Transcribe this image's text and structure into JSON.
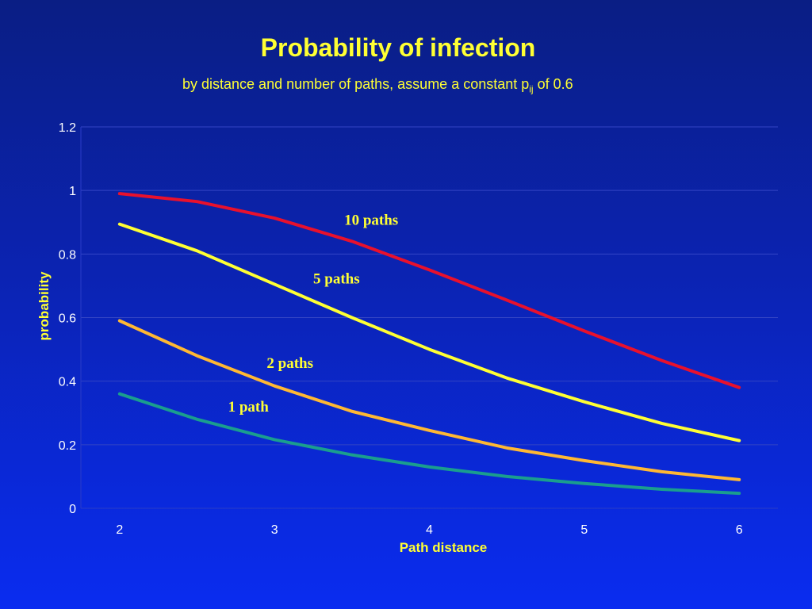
{
  "slide": {
    "title": "Probability of infection",
    "subtitle_main": "by distance and number of paths, assume a constant p",
    "subtitle_sub": "ij",
    "subtitle_tail": " of 0.6"
  },
  "chart_data": {
    "type": "line",
    "x": [
      2,
      2.5,
      3,
      3.5,
      4,
      4.5,
      5,
      5.5,
      6
    ],
    "series": [
      {
        "name": "10 paths",
        "color": "#e8112d",
        "values": [
          0.99,
          0.965,
          0.913,
          0.84,
          0.75,
          0.655,
          0.558,
          0.465,
          0.38
        ]
      },
      {
        "name": "5 paths",
        "color": "#ffff33",
        "values": [
          0.894,
          0.81,
          0.705,
          0.6,
          0.5,
          0.41,
          0.335,
          0.267,
          0.213
        ]
      },
      {
        "name": "2 paths",
        "color": "#ffb833",
        "values": [
          0.59,
          0.48,
          0.385,
          0.305,
          0.245,
          0.19,
          0.15,
          0.115,
          0.09
        ]
      },
      {
        "name": "1 path",
        "color": "#1a9e8e",
        "values": [
          0.36,
          0.28,
          0.216,
          0.168,
          0.13,
          0.1,
          0.078,
          0.06,
          0.047
        ]
      }
    ],
    "xticks": [
      "2",
      "3",
      "4",
      "5",
      "6"
    ],
    "yticks": [
      "0",
      "0.2",
      "0.4",
      "0.6",
      "0.8",
      "1",
      "1.2"
    ],
    "xlabel": "Path distance",
    "ylabel": "probability",
    "xlim": [
      1.75,
      6.25
    ],
    "ylim": [
      0,
      1.2
    ],
    "grid": true,
    "legend": "inline labels"
  }
}
